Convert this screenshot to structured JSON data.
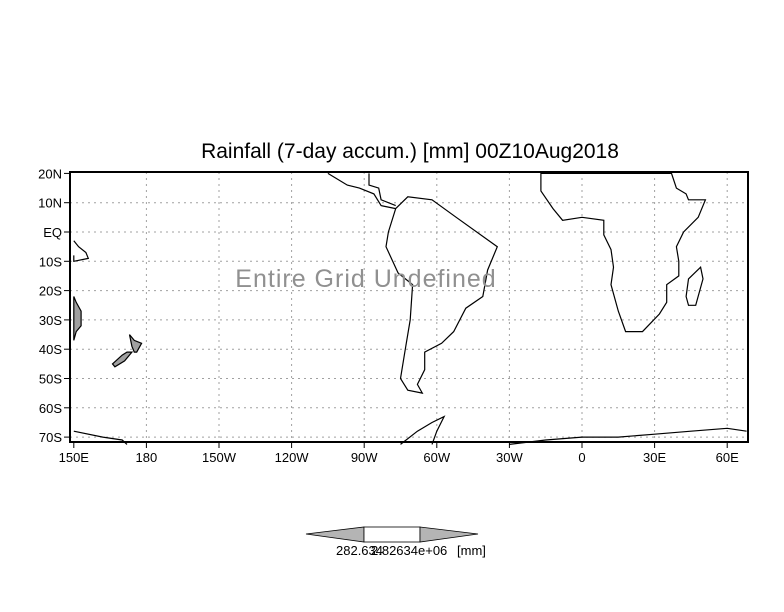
{
  "title": "Rainfall (7-day accum.) [mm] 00Z10Aug2018",
  "message": "Entire Grid Undefined",
  "lat_ticks": [
    {
      "label": "20N",
      "lat": 20
    },
    {
      "label": "10N",
      "lat": 10
    },
    {
      "label": "EQ",
      "lat": 0
    },
    {
      "label": "10S",
      "lat": -10
    },
    {
      "label": "20S",
      "lat": -20
    },
    {
      "label": "30S",
      "lat": -30
    },
    {
      "label": "40S",
      "lat": -40
    },
    {
      "label": "50S",
      "lat": -50
    },
    {
      "label": "60S",
      "lat": -60
    },
    {
      "label": "70S",
      "lat": -70
    }
  ],
  "lon_ticks": [
    {
      "label": "150E",
      "lon": 150
    },
    {
      "label": "180",
      "lon": 180
    },
    {
      "label": "150W",
      "lon": 210
    },
    {
      "label": "120W",
      "lon": 240
    },
    {
      "label": "90W",
      "lon": 270
    },
    {
      "label": "60W",
      "lon": 300
    },
    {
      "label": "30W",
      "lon": 330
    },
    {
      "label": "0",
      "lon": 360
    },
    {
      "label": "30E",
      "lon": 390
    },
    {
      "label": "60E",
      "lon": 420
    }
  ],
  "colorbar": {
    "label_min": "282.634",
    "label_max": "2.82634e+06",
    "unit": "[mm]",
    "fill_color": "#b4b4b4",
    "center_color": "#ffffff"
  },
  "colors": {
    "land_outline": "#000000",
    "shaded_land": "#a0a0a0",
    "message": "#909090",
    "grid": "#a0a0a0"
  }
}
